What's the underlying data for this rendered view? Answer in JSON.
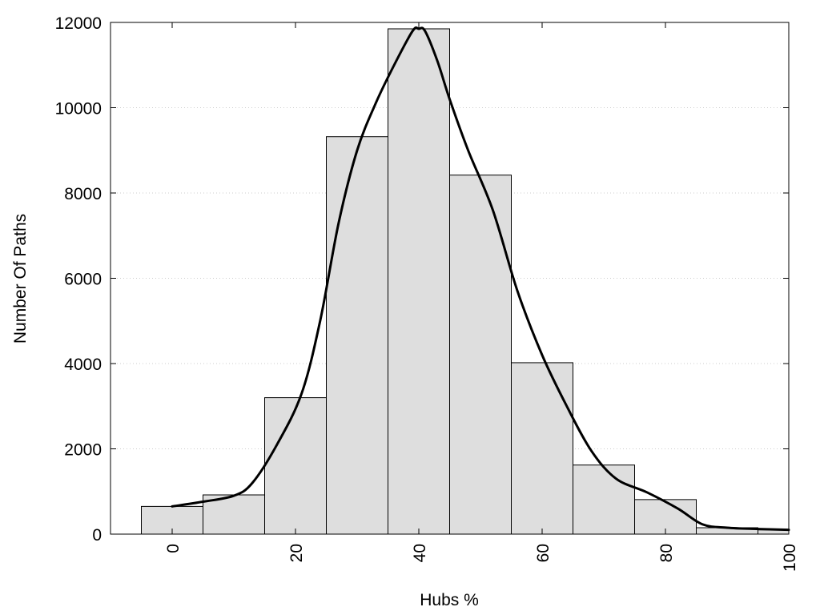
{
  "chart_data": {
    "type": "bar",
    "title": "",
    "xlabel": "Hubs %",
    "ylabel": "Number Of Paths",
    "xlim": [
      -10,
      100
    ],
    "ylim": [
      0,
      12000
    ],
    "x_ticks": [
      0,
      20,
      40,
      60,
      80,
      100
    ],
    "y_ticks": [
      0,
      2000,
      4000,
      6000,
      8000,
      10000,
      12000
    ],
    "grid": "horizontal dotted",
    "bin_width": 10,
    "bins": [
      {
        "x": 0,
        "value": 650
      },
      {
        "x": 10,
        "value": 920
      },
      {
        "x": 20,
        "value": 3200
      },
      {
        "x": 30,
        "value": 9320
      },
      {
        "x": 40,
        "value": 11850
      },
      {
        "x": 50,
        "value": 8420
      },
      {
        "x": 60,
        "value": 4020
      },
      {
        "x": 70,
        "value": 1620
      },
      {
        "x": 80,
        "value": 810
      },
      {
        "x": 90,
        "value": 150
      },
      {
        "x": 100,
        "value": 100
      }
    ],
    "curve": [
      [
        0,
        650
      ],
      [
        5,
        760
      ],
      [
        10,
        900
      ],
      [
        13,
        1200
      ],
      [
        17,
        2100
      ],
      [
        21,
        3300
      ],
      [
        24,
        5000
      ],
      [
        27,
        7300
      ],
      [
        30,
        9000
      ],
      [
        33,
        10100
      ],
      [
        36,
        11000
      ],
      [
        39,
        11800
      ],
      [
        40,
        11850
      ],
      [
        41,
        11800
      ],
      [
        43,
        11100
      ],
      [
        45,
        10200
      ],
      [
        48,
        9000
      ],
      [
        52,
        7600
      ],
      [
        56,
        5700
      ],
      [
        60,
        4200
      ],
      [
        64,
        3000
      ],
      [
        68,
        1950
      ],
      [
        72,
        1300
      ],
      [
        77,
        980
      ],
      [
        82,
        600
      ],
      [
        86,
        230
      ],
      [
        90,
        150
      ],
      [
        95,
        120
      ],
      [
        100,
        100
      ]
    ],
    "colors": {
      "bar_fill": "#dedede",
      "bar_stroke": "#000000",
      "curve": "#000000",
      "grid": "#cccccc"
    }
  }
}
